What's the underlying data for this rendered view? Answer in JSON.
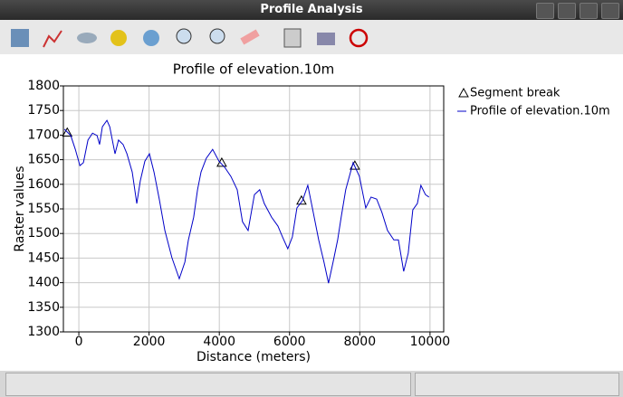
{
  "window": {
    "title": "Profile Analysis"
  },
  "chart_data": {
    "type": "line",
    "title": "Profile of elevation.10m",
    "xlabel": "Distance (meters)",
    "ylabel": "Raster values",
    "xlim": [
      -440,
      10390
    ],
    "ylim": [
      1300,
      1800
    ],
    "xticks": [
      0,
      2000,
      4000,
      6000,
      8000,
      10000
    ],
    "yticks": [
      1300,
      1350,
      1400,
      1450,
      1500,
      1550,
      1600,
      1650,
      1700,
      1750,
      1800
    ],
    "grid": true,
    "legend": "upper right",
    "series": [
      {
        "name": "Segment break",
        "type": "scatter",
        "color": "#000000",
        "x": [
          -330,
          4070,
          6340,
          7860
        ],
        "values": [
          1705,
          1644,
          1567,
          1638
        ]
      },
      {
        "name": "Profile of elevation.10m",
        "type": "line",
        "color": "#0000c8",
        "x": [
          -410,
          -230,
          -100,
          30,
          130,
          260,
          390,
          520,
          590,
          670,
          800,
          880,
          1030,
          1130,
          1260,
          1370,
          1520,
          1650,
          1750,
          1880,
          2010,
          2140,
          2290,
          2450,
          2650,
          2860,
          3020,
          3120,
          3270,
          3380,
          3480,
          3630,
          3810,
          3990,
          4150,
          4330,
          4510,
          4660,
          4820,
          5000,
          5150,
          5280,
          5490,
          5670,
          5800,
          5950,
          6080,
          6210,
          6370,
          6520,
          6650,
          6830,
          6980,
          7110,
          7240,
          7370,
          7470,
          7600,
          7810,
          7990,
          8170,
          8320,
          8480,
          8630,
          8790,
          8970,
          9100,
          9250,
          9380,
          9510,
          9640,
          9740,
          9870,
          9970
        ],
        "values": [
          1712,
          1699,
          1671,
          1638,
          1644,
          1690,
          1704,
          1699,
          1681,
          1717,
          1730,
          1717,
          1662,
          1690,
          1681,
          1662,
          1625,
          1561,
          1607,
          1647,
          1662,
          1625,
          1570,
          1506,
          1451,
          1408,
          1442,
          1487,
          1533,
          1589,
          1625,
          1653,
          1671,
          1647,
          1635,
          1616,
          1589,
          1524,
          1506,
          1579,
          1589,
          1561,
          1533,
          1515,
          1493,
          1469,
          1493,
          1552,
          1567,
          1598,
          1552,
          1487,
          1442,
          1399,
          1442,
          1487,
          1533,
          1589,
          1644,
          1616,
          1552,
          1574,
          1570,
          1543,
          1506,
          1487,
          1487,
          1423,
          1460,
          1548,
          1561,
          1598,
          1579,
          1574
        ]
      }
    ]
  }
}
